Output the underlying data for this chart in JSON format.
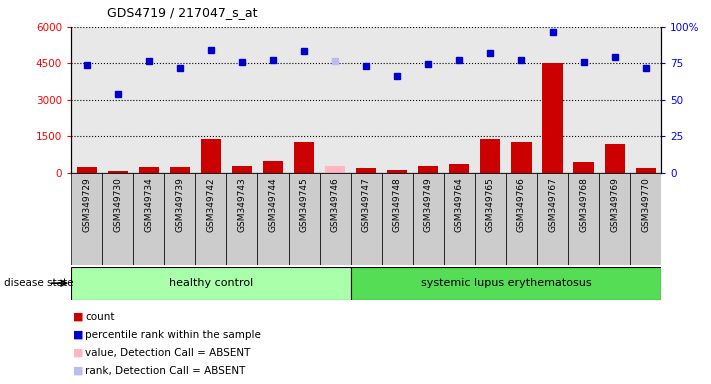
{
  "title": "GDS4719 / 217047_s_at",
  "samples": [
    "GSM349729",
    "GSM349730",
    "GSM349734",
    "GSM349739",
    "GSM349742",
    "GSM349743",
    "GSM349744",
    "GSM349745",
    "GSM349746",
    "GSM349747",
    "GSM349748",
    "GSM349749",
    "GSM349764",
    "GSM349765",
    "GSM349766",
    "GSM349767",
    "GSM349768",
    "GSM349769",
    "GSM349770"
  ],
  "count_values": [
    220,
    80,
    230,
    230,
    1380,
    300,
    500,
    1250,
    280,
    210,
    130,
    290,
    380,
    1370,
    1250,
    4500,
    450,
    1170,
    200
  ],
  "count_absent": [
    false,
    false,
    false,
    false,
    false,
    false,
    false,
    false,
    true,
    false,
    false,
    false,
    false,
    false,
    false,
    false,
    false,
    false,
    false
  ],
  "percentile_values": [
    4420,
    3250,
    4580,
    4320,
    5050,
    4540,
    4620,
    5020,
    4600,
    4390,
    3980,
    4490,
    4620,
    4920,
    4620,
    5770,
    4540,
    4750,
    4300
  ],
  "percentile_absent": [
    false,
    false,
    false,
    false,
    false,
    false,
    false,
    false,
    true,
    false,
    false,
    false,
    false,
    false,
    false,
    false,
    false,
    false,
    false
  ],
  "healthy_control_count": 9,
  "disease_label1": "healthy control",
  "disease_label2": "systemic lupus erythematosus",
  "ylim_left": [
    0,
    6000
  ],
  "ylim_right": [
    0,
    100
  ],
  "yticks_left": [
    0,
    1500,
    3000,
    4500,
    6000
  ],
  "ytick_labels_left": [
    "0",
    "1500",
    "3000",
    "4500",
    "6000"
  ],
  "yticks_right": [
    0,
    25,
    50,
    75,
    100
  ],
  "ytick_labels_right": [
    "0",
    "25",
    "50",
    "75",
    "100%"
  ],
  "bar_color_present": "#CC0000",
  "bar_color_absent": "#FFB6C1",
  "dot_color_present": "#0000CC",
  "dot_color_absent": "#BBBBEE",
  "col_bg_healthy": "#DDDDDD",
  "col_bg_lupus": "#DDDDDD",
  "healthy_box_color": "#AAFFAA",
  "lupus_box_color": "#55DD55",
  "grid_color": "black",
  "disease_state_label": "disease state"
}
